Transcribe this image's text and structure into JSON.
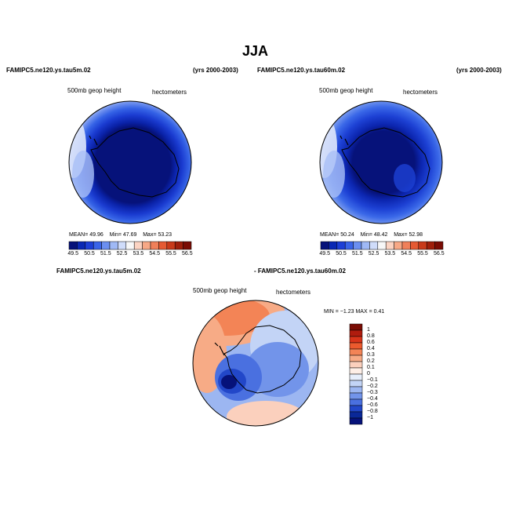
{
  "title": "JJA",
  "panels": [
    {
      "case": "FAMIPC5.ne120.ys.tau5m.02",
      "years": "(yrs 2000-2003)",
      "variable": "500mb  geop  height",
      "units": "hectometers",
      "stats": {
        "mean_label": "MEAN=",
        "mean": "49.96",
        "min_label": "Min=",
        "min": "47.69",
        "max_label": "Max=",
        "max": "53.23"
      }
    },
    {
      "case": "FAMIPC5.ne120.ys.tau60m.02",
      "years": "(yrs 2000-2003)",
      "variable": "500mb  geop  height",
      "units": "hectometers",
      "stats": {
        "mean_label": "MEAN=",
        "mean": "50.24",
        "min_label": "Min=",
        "min": "48.42",
        "max_label": "Max=",
        "max": "52.98"
      }
    }
  ],
  "colorbar_horizontal": {
    "labels": [
      "49.5",
      "50.5",
      "51.5",
      "52.5",
      "53.5",
      "54.5",
      "55.5",
      "56.5"
    ],
    "colors": [
      "#06127a",
      "#0a28b4",
      "#1d3fd6",
      "#3a64e8",
      "#6b8ff0",
      "#9fb9f5",
      "#cfdcfa",
      "#f7f7f7",
      "#fbd3c2",
      "#f7a886",
      "#f0805a",
      "#e55a33",
      "#c83a1a",
      "#9e1f0b",
      "#7a0c04"
    ]
  },
  "difference": {
    "case_a": "FAMIPC5.ne120.ys.tau5m.02",
    "case_b": "- FAMIPC5.ne120.ys.tau60m.02",
    "variable": "500mb  geop  height",
    "units": "hectometers",
    "min_max_text": "MIN =    −1.23  MAX =     0.41",
    "colorbar": {
      "labels": [
        "1",
        "0.8",
        "0.6",
        "0.4",
        "0.3",
        "0.2",
        "0.1",
        "0",
        "−0.1",
        "−0.2",
        "−0.3",
        "−0.4",
        "−0.6",
        "−0.8",
        "−1"
      ],
      "colors": [
        "#7a0c04",
        "#b01c0e",
        "#d8341a",
        "#ec5a2e",
        "#f38456",
        "#f7ab86",
        "#fbd0bd",
        "#fdeee6",
        "#e6eefb",
        "#c3d4f6",
        "#9cb6f1",
        "#7294ea",
        "#4a70e0",
        "#2247c9",
        "#0a2898",
        "#06127a"
      ]
    }
  },
  "colors": {
    "deep_blue": "#06127a",
    "mid_blue": "#1f3fd3",
    "light_blue": "#8aa6f2",
    "pale": "#dde6fb",
    "orange": "#f4a07a",
    "coast": "#000000"
  }
}
